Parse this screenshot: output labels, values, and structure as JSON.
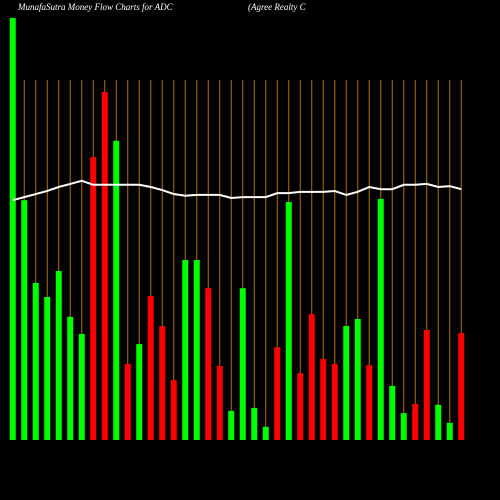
{
  "chart_data": {
    "type": "bar",
    "title": "MunafaSutra  Money Flow  Charts for ADC",
    "subtitle": "(Agree    Realty C",
    "categories": [
      null,
      null,
      null,
      null,
      null,
      null,
      null,
      null,
      null,
      null,
      null,
      null,
      null,
      null,
      null,
      null,
      null,
      null,
      null,
      null,
      null,
      null,
      null,
      null,
      null,
      null,
      null,
      null,
      null,
      null,
      null,
      null,
      null,
      null,
      null,
      null,
      null,
      null,
      null,
      null
    ],
    "series": [
      {
        "values": [
          95.9,
          54.5,
          35.7,
          32.5,
          38.4,
          28,
          24.1,
          64.3,
          79.1,
          68,
          17.3,
          21.8,
          32.7,
          25.9,
          13.6,
          40.9,
          40.9,
          34.5,
          16.8,
          6.6,
          34.5,
          7.3,
          3,
          21.1,
          54.1,
          15.2,
          28.6,
          18.4,
          17.3,
          25.9,
          27.5,
          17,
          54.8,
          12.3,
          6.1,
          8.2,
          25,
          8,
          3.9,
          24.3
        ],
        "colors": [
          "#00ff00",
          "#00ff00",
          "#00ff00",
          "#00ff00",
          "#00ff00",
          "#00ff00",
          "#00ff00",
          "#ff0000",
          "#ff0000",
          "#00ff00",
          "#ff0000",
          "#00ff00",
          "#ff0000",
          "#ff0000",
          "#ff0000",
          "#00ff00",
          "#00ff00",
          "#ff0000",
          "#ff0000",
          "#00ff00",
          "#00ff00",
          "#00ff00",
          "#00ff00",
          "#ff0000",
          "#00ff00",
          "#ff0000",
          "#ff0000",
          "#ff0000",
          "#ff0000",
          "#00ff00",
          "#00ff00",
          "#ff0000",
          "#00ff00",
          "#00ff00",
          "#00ff00",
          "#ff0000",
          "#ff0000",
          "#00ff00",
          "#00ff00",
          "#ff0000"
        ]
      },
      {
        "type": "line",
        "color": "#ffffff",
        "values": [
          54.5,
          55.2,
          55.9,
          56.6,
          57.5,
          58.2,
          58.9,
          58,
          58,
          58,
          58,
          58,
          57.5,
          56.8,
          55.9,
          55.5,
          55.7,
          55.7,
          55.7,
          55,
          55.2,
          55.2,
          55.2,
          56.1,
          56.1,
          56.4,
          56.4,
          56.4,
          56.6,
          55.7,
          56.4,
          57.5,
          57,
          57,
          58,
          58,
          58.2,
          57.5,
          57.7,
          57
        ]
      }
    ],
    "ylim": [
      0,
      100
    ],
    "grid_color": "#b8700b",
    "background": "#000000"
  }
}
